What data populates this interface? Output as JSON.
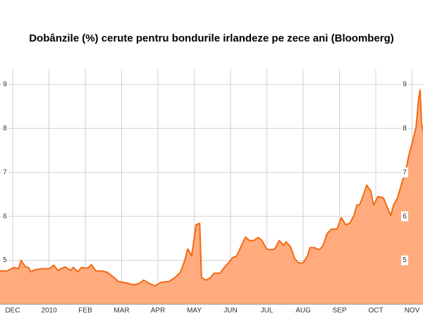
{
  "chart_data": {
    "type": "area",
    "title": "Dobânzile (%) cerute pentru bondurile irlandeze pe zece ani (Bloomberg)",
    "series": [
      {
        "color": "#f26a10",
        "fill": "#ffab7e",
        "x": [
          -0.35,
          -0.16,
          0.04,
          0.16,
          0.23,
          0.35,
          0.43,
          0.5,
          0.62,
          0.82,
          1.01,
          1.13,
          1.24,
          1.44,
          1.59,
          1.67,
          1.79,
          1.9,
          2.06,
          2.17,
          2.29,
          2.45,
          2.6,
          2.76,
          2.91,
          3.15,
          3.34,
          3.5,
          3.61,
          3.77,
          3.92,
          4.08,
          4.31,
          4.47,
          4.62,
          4.74,
          4.82,
          4.93,
          5.05,
          5.15,
          5.2,
          5.32,
          5.44,
          5.55,
          5.71,
          5.83,
          5.94,
          6.06,
          6.17,
          6.29,
          6.41,
          6.52,
          6.64,
          6.76,
          6.87,
          6.99,
          7.11,
          7.22,
          7.34,
          7.46,
          7.53,
          7.65,
          7.77,
          7.88,
          8.0,
          8.12,
          8.19,
          8.31,
          8.43,
          8.54,
          8.66,
          8.78,
          8.93,
          9.05,
          9.17,
          9.28,
          9.4,
          9.48,
          9.55,
          9.63,
          9.75,
          9.86,
          9.94,
          10.06,
          10.21,
          10.33,
          10.41,
          10.49,
          10.6,
          10.72,
          10.83,
          10.91,
          10.99,
          11.11,
          11.18,
          11.22,
          11.26,
          11.3
        ],
        "values": [
          4.76,
          4.76,
          4.84,
          4.81,
          5.0,
          4.85,
          4.84,
          4.74,
          4.79,
          4.81,
          4.81,
          4.89,
          4.77,
          4.85,
          4.77,
          4.84,
          4.74,
          4.84,
          4.82,
          4.9,
          4.76,
          4.76,
          4.73,
          4.63,
          4.52,
          4.48,
          4.44,
          4.48,
          4.55,
          4.47,
          4.42,
          4.5,
          4.52,
          4.61,
          4.73,
          5.0,
          5.26,
          5.1,
          5.81,
          5.84,
          4.61,
          4.55,
          4.6,
          4.71,
          4.71,
          4.84,
          4.94,
          5.06,
          5.1,
          5.32,
          5.53,
          5.45,
          5.45,
          5.52,
          5.45,
          5.26,
          5.24,
          5.26,
          5.45,
          5.34,
          5.42,
          5.31,
          5.03,
          4.94,
          4.94,
          5.1,
          5.29,
          5.29,
          5.24,
          5.32,
          5.61,
          5.71,
          5.71,
          5.97,
          5.81,
          5.84,
          6.02,
          6.26,
          6.26,
          6.42,
          6.71,
          6.58,
          6.26,
          6.45,
          6.42,
          6.18,
          6.02,
          6.26,
          6.42,
          6.77,
          7.06,
          7.39,
          7.63,
          8.03,
          8.68,
          8.87,
          8.11,
          7.95
        ]
      }
    ],
    "xlim": [
      -0.35,
      11.3
    ],
    "xticks": [
      {
        "value": 0,
        "label": "DEC"
      },
      {
        "value": 1,
        "label": "2010"
      },
      {
        "value": 2,
        "label": "FEB"
      },
      {
        "value": 3,
        "label": "MAR"
      },
      {
        "value": 4,
        "label": "APR"
      },
      {
        "value": 5,
        "label": "MAY"
      },
      {
        "value": 6,
        "label": "JUN"
      },
      {
        "value": 7,
        "label": "JUL"
      },
      {
        "value": 8,
        "label": "AUG"
      },
      {
        "value": 9,
        "label": "SEP"
      },
      {
        "value": 10,
        "label": "OCT"
      },
      {
        "value": 11,
        "label": "NOV"
      }
    ],
    "ylim": [
      4,
      9.35
    ],
    "yticks": [
      5,
      6,
      7,
      8,
      9
    ],
    "grid": true
  }
}
